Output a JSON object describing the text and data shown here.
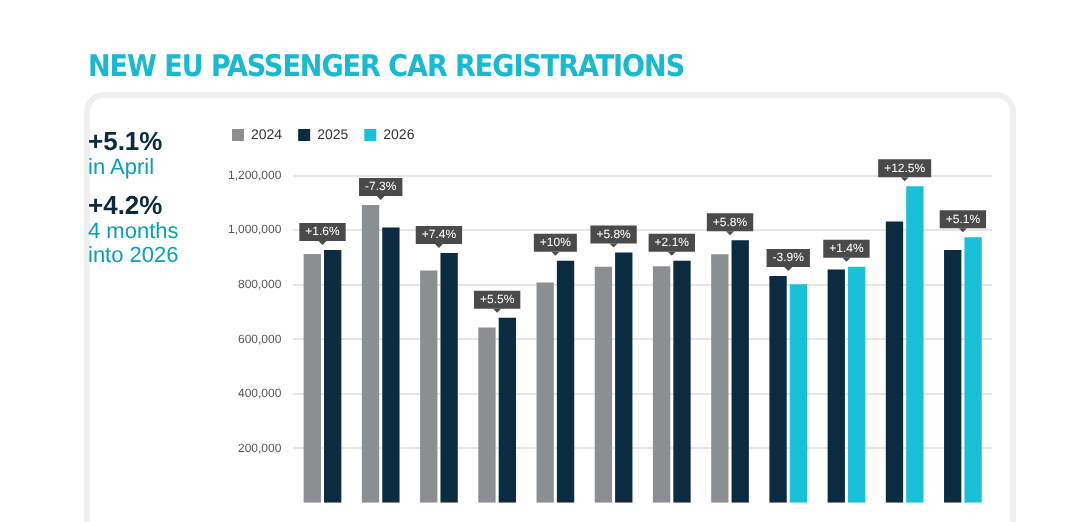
{
  "chart_data": {
    "type": "bar",
    "title": "NEW EU PASSENGER CAR REGISTRATIONS",
    "annotations": [
      "+5.1%",
      "in April",
      "+4.2%",
      "4 months into 2026",
      {
        "text": "+1.6%",
        "y": 927000
      },
      {
        "text": "-7.3%",
        "y": 1092000
      },
      {
        "text": "+7.4%",
        "y": 916000
      },
      {
        "text": "+5.5%",
        "y": 679000
      },
      {
        "text": "+10%",
        "y": 888000
      },
      {
        "text": "+5.8%",
        "y": 918000
      },
      {
        "text": "+2.1%",
        "y": 888000
      },
      {
        "text": "+5.8%",
        "y": 963000
      },
      {
        "text": "-3.9%",
        "y": 832000
      },
      {
        "text": "+1.4%",
        "y": 866000
      },
      {
        "text": "+12.5%",
        "y": 1161000
      },
      {
        "text": "+5.1%",
        "y": 974000
      }
    ],
    "categories": [
      null,
      null,
      null,
      null,
      null,
      null,
      null,
      null,
      null,
      null,
      null,
      null
    ],
    "series": [
      {
        "name": "2024",
        "color": "#8c8f91",
        "values": [
          913000,
          1092000,
          852000,
          643000,
          808000,
          866000,
          868000,
          912000,
          null,
          null,
          null,
          null
        ]
      },
      {
        "name": "2025",
        "color": "#0b2b40",
        "values": [
          927000,
          1010000,
          916000,
          679000,
          888000,
          918000,
          888000,
          963000,
          832000,
          856000,
          1032000,
          927000
        ]
      },
      {
        "name": "2026",
        "color": "#19c1d8",
        "values": [
          null,
          null,
          null,
          null,
          null,
          null,
          null,
          null,
          802000,
          866000,
          1161000,
          974000
        ]
      }
    ],
    "ylim": [
      0,
      1250000
    ],
    "yticks": [
      {
        "value": 200000,
        "label": "200,000"
      },
      {
        "value": 400000,
        "label": "400,000"
      },
      {
        "value": 600000,
        "label": "600,000"
      },
      {
        "value": 800000,
        "label": "800,000"
      },
      {
        "value": 1000000,
        "label": "1,000,000"
      },
      {
        "value": 1200000,
        "label": "1,200,000"
      }
    ],
    "grid": "y",
    "legend": "top left"
  }
}
